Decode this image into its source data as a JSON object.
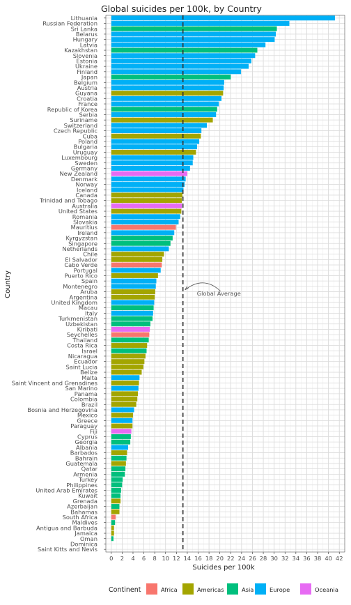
{
  "chart_data": {
    "type": "bar",
    "orientation": "horizontal",
    "title": "Global suicides per 100k, by Country",
    "xlabel": "Suicides per 100k",
    "ylabel": "Country",
    "xlim": [
      -1,
      43
    ],
    "xticks": [
      0,
      2,
      4,
      6,
      8,
      10,
      12,
      14,
      16,
      18,
      20,
      22,
      24,
      26,
      28,
      30,
      32,
      34,
      36,
      38,
      40,
      42
    ],
    "grid": true,
    "legend_position": "bottom",
    "legend_title": "Continent",
    "legend": [
      {
        "name": "Africa",
        "color": "#F8766D"
      },
      {
        "name": "Americas",
        "color": "#A3A500"
      },
      {
        "name": "Asia",
        "color": "#00BF7D"
      },
      {
        "name": "Europe",
        "color": "#00B0F6"
      },
      {
        "name": "Oceania",
        "color": "#E76BF3"
      }
    ],
    "reference_line": {
      "value": 13.2,
      "label": "Global Average",
      "style": "dashed"
    },
    "bars": [
      {
        "country": "Lithuania",
        "value": 41.2,
        "continent": "Europe"
      },
      {
        "country": "Russian Federation",
        "value": 32.8,
        "continent": "Europe"
      },
      {
        "country": "Sri Lanka",
        "value": 30.5,
        "continent": "Asia"
      },
      {
        "country": "Belarus",
        "value": 30.3,
        "continent": "Europe"
      },
      {
        "country": "Hungary",
        "value": 30.1,
        "continent": "Europe"
      },
      {
        "country": "Latvia",
        "value": 28.4,
        "continent": "Europe"
      },
      {
        "country": "Kazakhstan",
        "value": 26.9,
        "continent": "Asia"
      },
      {
        "country": "Slovenia",
        "value": 26.5,
        "continent": "Europe"
      },
      {
        "country": "Estonia",
        "value": 25.8,
        "continent": "Europe"
      },
      {
        "country": "Ukraine",
        "value": 25.3,
        "continent": "Europe"
      },
      {
        "country": "Finland",
        "value": 23.9,
        "continent": "Europe"
      },
      {
        "country": "Japan",
        "value": 22.0,
        "continent": "Asia"
      },
      {
        "country": "Belgium",
        "value": 20.8,
        "continent": "Europe"
      },
      {
        "country": "Austria",
        "value": 20.7,
        "continent": "Europe"
      },
      {
        "country": "Guyana",
        "value": 20.6,
        "continent": "Americas"
      },
      {
        "country": "Croatia",
        "value": 20.3,
        "continent": "Europe"
      },
      {
        "country": "France",
        "value": 19.8,
        "continent": "Europe"
      },
      {
        "country": "Republic of Korea",
        "value": 19.5,
        "continent": "Asia"
      },
      {
        "country": "Serbia",
        "value": 19.3,
        "continent": "Europe"
      },
      {
        "country": "Suriname",
        "value": 18.7,
        "continent": "Americas"
      },
      {
        "country": "Switzerland",
        "value": 17.6,
        "continent": "Europe"
      },
      {
        "country": "Czech Republic",
        "value": 16.6,
        "continent": "Europe"
      },
      {
        "country": "Cuba",
        "value": 16.5,
        "continent": "Americas"
      },
      {
        "country": "Poland",
        "value": 16.2,
        "continent": "Europe"
      },
      {
        "country": "Bulgaria",
        "value": 15.8,
        "continent": "Europe"
      },
      {
        "country": "Uruguay",
        "value": 15.6,
        "continent": "Americas"
      },
      {
        "country": "Luxembourg",
        "value": 15.1,
        "continent": "Europe"
      },
      {
        "country": "Sweden",
        "value": 15.0,
        "continent": "Europe"
      },
      {
        "country": "Germany",
        "value": 14.5,
        "continent": "Europe"
      },
      {
        "country": "New Zealand",
        "value": 14.0,
        "continent": "Oceania"
      },
      {
        "country": "Denmark",
        "value": 13.7,
        "continent": "Europe"
      },
      {
        "country": "Norway",
        "value": 13.5,
        "continent": "Europe"
      },
      {
        "country": "Iceland",
        "value": 13.3,
        "continent": "Europe"
      },
      {
        "country": "Canada",
        "value": 13.1,
        "continent": "Americas"
      },
      {
        "country": "Trinidad and Tobago",
        "value": 13.0,
        "continent": "Americas"
      },
      {
        "country": "Australia",
        "value": 13.0,
        "continent": "Oceania"
      },
      {
        "country": "United States",
        "value": 12.9,
        "continent": "Americas"
      },
      {
        "country": "Romania",
        "value": 12.7,
        "continent": "Europe"
      },
      {
        "country": "Slovakia",
        "value": 12.4,
        "continent": "Europe"
      },
      {
        "country": "Mauritius",
        "value": 11.9,
        "continent": "Africa"
      },
      {
        "country": "Ireland",
        "value": 11.6,
        "continent": "Europe"
      },
      {
        "country": "Kyrgyzstan",
        "value": 11.3,
        "continent": "Asia"
      },
      {
        "country": "Singapore",
        "value": 10.9,
        "continent": "Asia"
      },
      {
        "country": "Netherlands",
        "value": 10.6,
        "continent": "Europe"
      },
      {
        "country": "Chile",
        "value": 9.7,
        "continent": "Americas"
      },
      {
        "country": "El Salvador",
        "value": 9.4,
        "continent": "Americas"
      },
      {
        "country": "Cabo Verde",
        "value": 9.3,
        "continent": "Africa"
      },
      {
        "country": "Portugal",
        "value": 9.1,
        "continent": "Europe"
      },
      {
        "country": "Puerto Rico",
        "value": 8.6,
        "continent": "Americas"
      },
      {
        "country": "Spain",
        "value": 8.3,
        "continent": "Europe"
      },
      {
        "country": "Montenegro",
        "value": 8.2,
        "continent": "Europe"
      },
      {
        "country": "Aruba",
        "value": 8.1,
        "continent": "Americas"
      },
      {
        "country": "Argentina",
        "value": 8.0,
        "continent": "Americas"
      },
      {
        "country": "United Kingdom",
        "value": 7.9,
        "continent": "Europe"
      },
      {
        "country": "Macau",
        "value": 7.8,
        "continent": "Asia"
      },
      {
        "country": "Italy",
        "value": 7.7,
        "continent": "Europe"
      },
      {
        "country": "Turkmenistan",
        "value": 7.6,
        "continent": "Asia"
      },
      {
        "country": "Uzbekistan",
        "value": 7.2,
        "continent": "Asia"
      },
      {
        "country": "Kiribati",
        "value": 7.1,
        "continent": "Oceania"
      },
      {
        "country": "Seychelles",
        "value": 7.0,
        "continent": "Africa"
      },
      {
        "country": "Thailand",
        "value": 6.9,
        "continent": "Asia"
      },
      {
        "country": "Costa Rica",
        "value": 6.6,
        "continent": "Americas"
      },
      {
        "country": "Israel",
        "value": 6.5,
        "continent": "Asia"
      },
      {
        "country": "Nicaragua",
        "value": 6.3,
        "continent": "Americas"
      },
      {
        "country": "Ecuador",
        "value": 6.1,
        "continent": "Americas"
      },
      {
        "country": "Saint Lucia",
        "value": 5.9,
        "continent": "Americas"
      },
      {
        "country": "Belize",
        "value": 5.6,
        "continent": "Americas"
      },
      {
        "country": "Malta",
        "value": 5.2,
        "continent": "Europe"
      },
      {
        "country": "Saint Vincent and Grenadines",
        "value": 5.1,
        "continent": "Americas"
      },
      {
        "country": "San Marino",
        "value": 5.0,
        "continent": "Europe"
      },
      {
        "country": "Panama",
        "value": 4.9,
        "continent": "Americas"
      },
      {
        "country": "Colombia",
        "value": 4.8,
        "continent": "Americas"
      },
      {
        "country": "Brazil",
        "value": 4.6,
        "continent": "Americas"
      },
      {
        "country": "Bosnia and Herzegovina",
        "value": 4.2,
        "continent": "Europe"
      },
      {
        "country": "Mexico",
        "value": 4.0,
        "continent": "Americas"
      },
      {
        "country": "Greece",
        "value": 3.9,
        "continent": "Europe"
      },
      {
        "country": "Paraguay",
        "value": 3.9,
        "continent": "Americas"
      },
      {
        "country": "Fiji",
        "value": 3.7,
        "continent": "Oceania"
      },
      {
        "country": "Cyprus",
        "value": 3.6,
        "continent": "Asia"
      },
      {
        "country": "Georgia",
        "value": 3.5,
        "continent": "Asia"
      },
      {
        "country": "Albania",
        "value": 3.1,
        "continent": "Europe"
      },
      {
        "country": "Barbados",
        "value": 2.9,
        "continent": "Americas"
      },
      {
        "country": "Bahrain",
        "value": 2.8,
        "continent": "Asia"
      },
      {
        "country": "Guatemala",
        "value": 2.7,
        "continent": "Americas"
      },
      {
        "country": "Qatar",
        "value": 2.6,
        "continent": "Asia"
      },
      {
        "country": "Armenia",
        "value": 2.5,
        "continent": "Asia"
      },
      {
        "country": "Turkey",
        "value": 2.1,
        "continent": "Asia"
      },
      {
        "country": "Philippines",
        "value": 2.0,
        "continent": "Asia"
      },
      {
        "country": "United Arab Emirates",
        "value": 1.8,
        "continent": "Asia"
      },
      {
        "country": "Kuwait",
        "value": 1.7,
        "continent": "Asia"
      },
      {
        "country": "Grenada",
        "value": 1.7,
        "continent": "Americas"
      },
      {
        "country": "Azerbaijan",
        "value": 1.5,
        "continent": "Asia"
      },
      {
        "country": "Bahamas",
        "value": 1.5,
        "continent": "Americas"
      },
      {
        "country": "South Africa",
        "value": 0.8,
        "continent": "Africa"
      },
      {
        "country": "Maldives",
        "value": 0.7,
        "continent": "Asia"
      },
      {
        "country": "Antigua and Barbuda",
        "value": 0.5,
        "continent": "Americas"
      },
      {
        "country": "Jamaica",
        "value": 0.5,
        "continent": "Americas"
      },
      {
        "country": "Oman",
        "value": 0.4,
        "continent": "Asia"
      },
      {
        "country": "Dominica",
        "value": 0.0,
        "continent": "Americas"
      },
      {
        "country": "Saint Kitts and Nevis",
        "value": 0.0,
        "continent": "Americas"
      }
    ]
  }
}
